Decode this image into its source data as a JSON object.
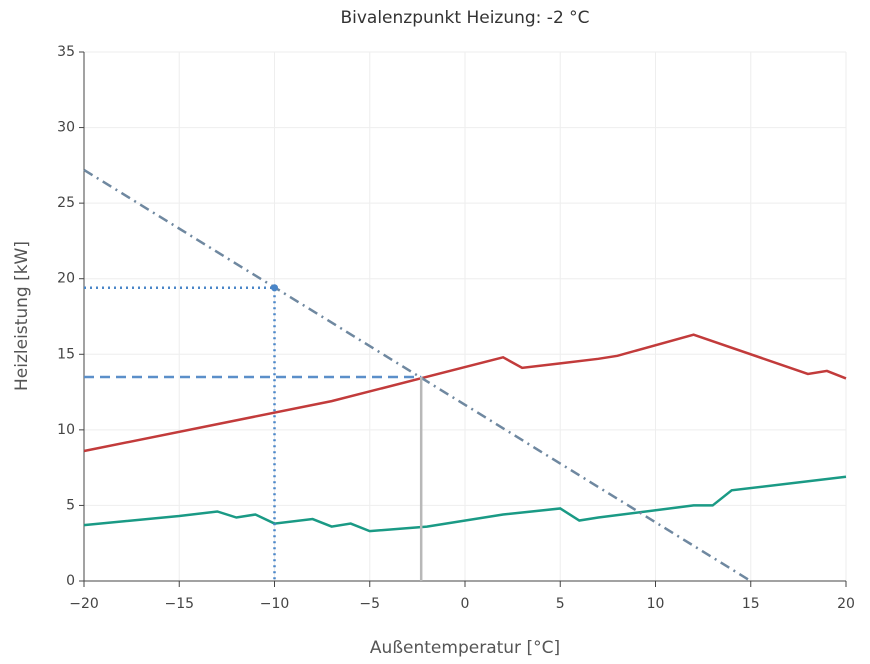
{
  "chart_data": {
    "type": "line",
    "title": "Bivalenzpunkt Heizung: -2 °C",
    "xlabel": "Außentemperatur [°C]",
    "ylabel": "Heizleistung [kW]",
    "xlim": [
      -20,
      20
    ],
    "ylim": [
      0,
      35
    ],
    "xticks": [
      {
        "value": -20,
        "label": "−20"
      },
      {
        "value": -15,
        "label": "−15"
      },
      {
        "value": -10,
        "label": "−10"
      },
      {
        "value": -5,
        "label": "−5"
      },
      0,
      5,
      10,
      15,
      20
    ],
    "yticks": [
      0,
      5,
      10,
      15,
      20,
      25,
      30,
      35
    ],
    "grid": true,
    "series": [
      {
        "color": "#c23b3b",
        "dash": "solid",
        "x": [
          -20,
          -7,
          2,
          3,
          5,
          7,
          8,
          12,
          18,
          19,
          20
        ],
        "values": [
          8.6,
          11.9,
          14.8,
          14.1,
          14.4,
          14.7,
          14.9,
          16.3,
          13.7,
          13.9,
          13.4
        ]
      },
      {
        "color": "#1a9a85",
        "dash": "solid",
        "x": [
          -20,
          -15,
          -13,
          -12,
          -11,
          -10,
          -8,
          -7,
          -6,
          -5,
          -2,
          2,
          5,
          6,
          7,
          12,
          13,
          14,
          20
        ],
        "values": [
          3.7,
          4.3,
          4.6,
          4.2,
          4.4,
          3.8,
          4.1,
          3.6,
          3.8,
          3.3,
          3.6,
          4.4,
          4.8,
          4.0,
          4.2,
          5.0,
          5.0,
          6.0,
          6.9
        ]
      },
      {
        "color": "#6f88a0",
        "dash": "dashdot",
        "x": [
          -20,
          15
        ],
        "values": [
          27.2,
          0
        ]
      },
      {
        "color": "#4a86c8",
        "dash": "dot",
        "x": [
          -20,
          -10,
          -10
        ],
        "values": [
          19.4,
          19.4,
          0
        ]
      },
      {
        "color": "#4a86c8",
        "dash": "markers",
        "x": [
          -10
        ],
        "values": [
          19.4
        ]
      },
      {
        "color": "#5b8fc9",
        "dash": "dash",
        "x": [
          -20,
          -2.3
        ],
        "values": [
          13.5,
          13.5
        ]
      },
      {
        "color": "#b8b8b8",
        "dash": "solid",
        "x": [
          -2.3,
          -2.3
        ],
        "values": [
          0,
          13.5
        ]
      }
    ]
  }
}
